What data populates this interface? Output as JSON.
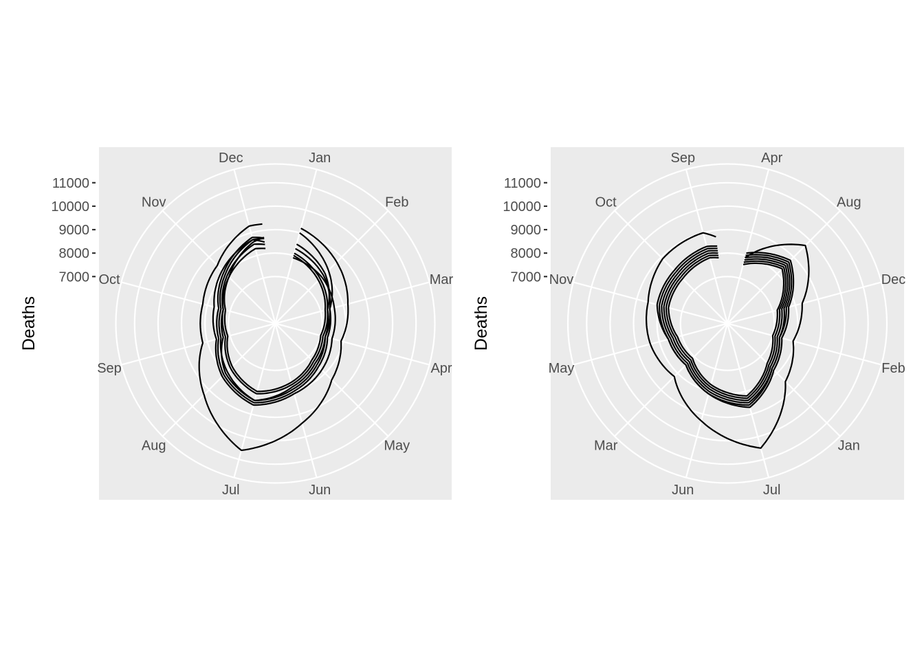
{
  "chart_data": [
    {
      "type": "line",
      "coord": "polar",
      "ylabel": "Deaths",
      "yticks": [
        7000,
        8000,
        9000,
        10000,
        11000
      ],
      "ylim": [
        5000,
        11800
      ],
      "theta_categories": [
        "Jan",
        "Feb",
        "Mar",
        "Apr",
        "May",
        "Jun",
        "Jul",
        "Aug",
        "Sep",
        "Oct",
        "Nov",
        "Dec"
      ],
      "grid": true,
      "series": [
        {
          "values": [
            9000,
            8200,
            7400,
            7200,
            7400,
            7800,
            8400,
            8000,
            7300,
            7300,
            7800,
            8600
          ]
        },
        {
          "values": [
            8500,
            8000,
            7300,
            7200,
            7500,
            7900,
            8400,
            7900,
            7400,
            7400,
            8000,
            8700
          ]
        },
        {
          "values": [
            8300,
            7900,
            7400,
            7300,
            7600,
            8000,
            8500,
            8100,
            7500,
            7500,
            8100,
            8800
          ]
        },
        {
          "values": [
            8100,
            7700,
            7300,
            7100,
            7300,
            7700,
            8100,
            7700,
            7200,
            7300,
            7900,
            8500
          ]
        },
        {
          "values": [
            8000,
            7600,
            7200,
            7000,
            7200,
            7600,
            8000,
            7600,
            7100,
            7200,
            7800,
            8300
          ]
        },
        {
          "values": [
            7900,
            7800,
            7600,
            7500,
            7800,
            8100,
            8600,
            8200,
            7600,
            7700,
            8200,
            8700
          ]
        },
        {
          "values": [
            9200,
            8700,
            8200,
            7900,
            8400,
            9400,
            10600,
            9300,
            8200,
            8200,
            8500,
            9300
          ]
        }
      ]
    },
    {
      "type": "line",
      "coord": "polar",
      "ylabel": "Deaths",
      "yticks": [
        7000,
        8000,
        9000,
        10000,
        11000
      ],
      "ylim": [
        5000,
        11800
      ],
      "theta_categories": [
        "Apr",
        "Aug",
        "Dec",
        "Feb",
        "Jan",
        "Jul",
        "Jun",
        "Mar",
        "May",
        "Nov",
        "Oct",
        "Sep"
      ],
      "grid": true,
      "series": [
        {
          "values": [
            7800,
            8500,
            7400,
            7200,
            7600,
            8400,
            7900,
            7300,
            7400,
            7800,
            7900,
            8100
          ]
        },
        {
          "values": [
            7900,
            8600,
            7500,
            7300,
            7700,
            8500,
            8000,
            7400,
            7500,
            7900,
            8000,
            8200
          ]
        },
        {
          "values": [
            7700,
            8400,
            7300,
            7100,
            7500,
            8300,
            7800,
            7200,
            7300,
            7700,
            7800,
            8000
          ]
        },
        {
          "values": [
            8000,
            8700,
            7600,
            7300,
            7700,
            8600,
            8100,
            7500,
            7600,
            8000,
            8100,
            8300
          ]
        },
        {
          "values": [
            7600,
            8300,
            7200,
            7000,
            7400,
            8200,
            7700,
            7100,
            7200,
            7600,
            7700,
            7900
          ]
        },
        {
          "values": [
            8100,
            8800,
            7700,
            7400,
            7800,
            8700,
            8100,
            7500,
            7600,
            8100,
            8200,
            8400
          ]
        },
        {
          "values": [
            7900,
            9700,
            8300,
            7900,
            8500,
            10500,
            9300,
            8200,
            8400,
            8500,
            8900,
            9000
          ]
        }
      ]
    }
  ]
}
